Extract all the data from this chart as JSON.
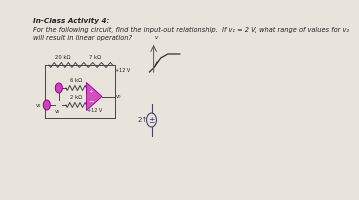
{
  "title_line1": "In-Class Activity 4:",
  "title_line2": "For the following circuit, find the input-out relationship.  If v₁ = 2 V, what range of values for v₂",
  "title_line3": "will result in linear operation?",
  "bg_color": "#e8e4dc",
  "text_color": "#222222",
  "wire_color": "#444444",
  "opamp_color": "#cc44bb",
  "source_color": "#cc44bb",
  "curve_color": "#555555",
  "r20k": "20 kΩ",
  "r7k": "7 kΩ",
  "r6k": "6 kΩ",
  "r2k": "2 kΩ",
  "v12p": "+12 V",
  "vv1": "v₁",
  "vv2": "v₂",
  "vvo": "v₀"
}
